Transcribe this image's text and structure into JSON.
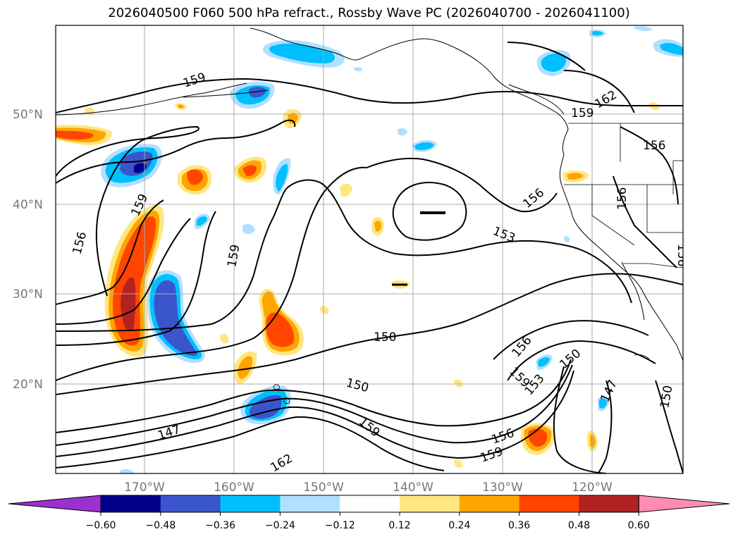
{
  "title": "2026040500 F060 500 hPa refract., Rossby Wave PC (2026040700 - 2026041100)",
  "lat_labels": [
    "50°N",
    "40°N",
    "30°N",
    "20°N"
  ],
  "lon_labels": [
    "170°W",
    "160°W",
    "150°W",
    "140°W",
    "130°W",
    "120°W"
  ],
  "contour_labels": [
    "159",
    "159",
    "156",
    "159",
    "156",
    "156",
    "153",
    "159",
    "162",
    "156",
    "156",
    "150",
    "150",
    "159",
    "147",
    "156",
    "159",
    "153",
    "150",
    "147",
    "150",
    "156",
    "159",
    "162",
    "159"
  ],
  "colorbar": {
    "tick_labels": [
      "−0.60",
      "−0.48",
      "−0.36",
      "−0.24",
      "−0.12",
      "0.12",
      "0.24",
      "0.36",
      "0.48",
      "0.60"
    ],
    "colors": [
      "#9b30d0",
      "#00008b",
      "#3a55cc",
      "#00bfff",
      "#b0e0ff",
      "#ffffff",
      "#ffe680",
      "#ffa500",
      "#ff4500",
      "#b22222",
      "#ff8cb4"
    ]
  },
  "colors": {
    "contour": "#000000",
    "grid": "#aaaaaa",
    "coast": "#000000"
  }
}
